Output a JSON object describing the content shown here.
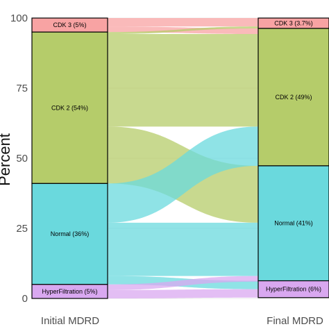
{
  "chart_data": {
    "type": "alluvial",
    "ylabel": "Percent",
    "ylim": [
      0,
      100
    ],
    "yticks": [
      0,
      25,
      50,
      75,
      100
    ],
    "axes": [
      "Initial MDRD",
      "Final MDRD"
    ],
    "strata_order_top_to_bottom": [
      "CDK 3",
      "CDK 2",
      "Normal",
      "HyperFiltration"
    ],
    "colors": {
      "CDK 3": "#f8a3a3",
      "CDK 2": "#b5cc6a",
      "Normal": "#6ad9dd",
      "HyperFiltration": "#d9a8f0"
    },
    "initial": [
      {
        "category": "CDK 3",
        "value": 5,
        "label": "CDK 3 (5%)"
      },
      {
        "category": "CDK 2",
        "value": 54,
        "label": "CDK 2 (54%)"
      },
      {
        "category": "Normal",
        "value": 36,
        "label": "Normal (36%)"
      },
      {
        "category": "HyperFiltration",
        "value": 5,
        "label": "HyperFiltration (5%)"
      }
    ],
    "final": [
      {
        "category": "CDK 3",
        "value": 3.7,
        "label": "CDK 3 (3.7%)"
      },
      {
        "category": "CDK 2",
        "value": 49,
        "label": "CDK 2 (49%)"
      },
      {
        "category": "Normal",
        "value": 41,
        "label": "Normal (41%)"
      },
      {
        "category": "HyperFiltration",
        "value": 6,
        "label": "HyperFiltration (6%)"
      }
    ],
    "flows": [
      {
        "from": "CDK 3",
        "to": "CDK 3",
        "value": 3.0
      },
      {
        "from": "CDK 3",
        "to": "CDK 2",
        "value": 2.0
      },
      {
        "from": "CDK 2",
        "to": "CDK 3",
        "value": 0.7
      },
      {
        "from": "CDK 2",
        "to": "CDK 2",
        "value": 33.0
      },
      {
        "from": "CDK 2",
        "to": "Normal",
        "value": 20.3
      },
      {
        "from": "Normal",
        "to": "CDK 2",
        "value": 14.0
      },
      {
        "from": "Normal",
        "to": "Normal",
        "value": 19.0
      },
      {
        "from": "Normal",
        "to": "HyperFiltration",
        "value": 3.0
      },
      {
        "from": "HyperFiltration",
        "to": "Normal",
        "value": 2.0
      },
      {
        "from": "HyperFiltration",
        "to": "HyperFiltration",
        "value": 3.0
      }
    ]
  }
}
